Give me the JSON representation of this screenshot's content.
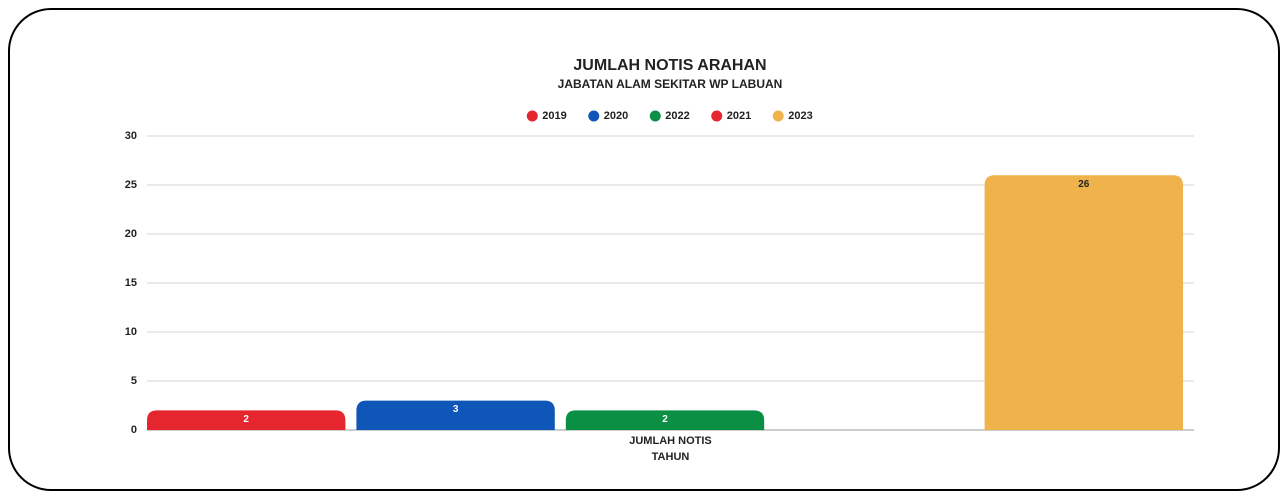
{
  "chart_data": {
    "type": "bar",
    "title": "JUMLAH NOTIS ARAHAN",
    "subtitle": "JABATAN ALAM SEKITAR WP LABUAN",
    "categories": [
      "JUMLAH NOTIS"
    ],
    "x_label": "TAHUN",
    "series": [
      {
        "name": "2019",
        "color": "#e5262e",
        "values": [
          2
        ]
      },
      {
        "name": "2020",
        "color": "#0f56b9",
        "values": [
          3
        ]
      },
      {
        "name": "2022",
        "color": "#0a8f45",
        "values": [
          2
        ]
      },
      {
        "name": "2021",
        "color": "#e5262e",
        "values": [
          null
        ]
      },
      {
        "name": "2023",
        "color": "#f0b24a",
        "values": [
          26
        ]
      }
    ],
    "ylim": [
      0,
      30
    ],
    "yticks": [
      0,
      5,
      10,
      15,
      20,
      25,
      30
    ],
    "grid": true,
    "legend": "top"
  }
}
